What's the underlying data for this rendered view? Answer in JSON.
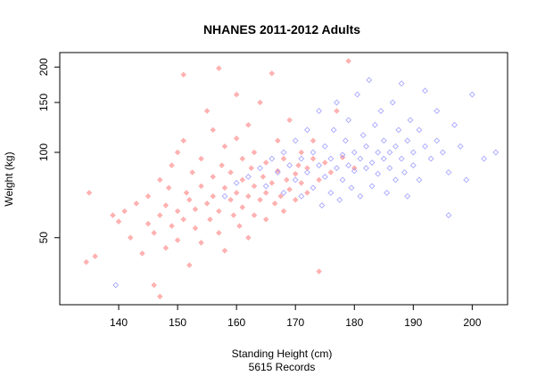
{
  "chart_data": {
    "type": "scatter",
    "title": "NHANES 2011-2012 Adults",
    "xlabel": "Standing Height (cm)",
    "subtitle": "5615 Records",
    "ylabel": "Weight (kg)",
    "y_scale": "log",
    "xlim": [
      130,
      206
    ],
    "ylim": [
      29,
      225
    ],
    "x_ticks": [
      140,
      150,
      160,
      170,
      180,
      190,
      200
    ],
    "y_ticks": [
      50,
      100,
      150,
      200
    ],
    "grid": false,
    "legend": "none",
    "series": [
      {
        "color": "#ff9999",
        "marker": "filled-diamond",
        "points": [
          [
            134.5,
            41
          ],
          [
            135,
            72
          ],
          [
            136,
            43
          ],
          [
            139,
            60
          ],
          [
            140,
            57
          ],
          [
            141,
            62
          ],
          [
            142,
            50
          ],
          [
            143,
            66
          ],
          [
            144,
            44
          ],
          [
            145,
            56
          ],
          [
            145,
            70
          ],
          [
            146,
            34
          ],
          [
            146,
            52
          ],
          [
            147,
            31
          ],
          [
            147,
            60
          ],
          [
            147,
            80
          ],
          [
            148,
            46
          ],
          [
            148,
            65
          ],
          [
            148.5,
            75
          ],
          [
            149,
            55
          ],
          [
            149,
            90
          ],
          [
            150,
            100
          ],
          [
            150,
            49
          ],
          [
            150,
            62
          ],
          [
            151,
            188
          ],
          [
            151,
            110
          ],
          [
            151,
            58
          ],
          [
            151.5,
            72
          ],
          [
            152,
            40
          ],
          [
            152,
            68
          ],
          [
            152.5,
            85
          ],
          [
            153,
            54
          ],
          [
            153,
            63
          ],
          [
            154,
            95
          ],
          [
            154,
            76
          ],
          [
            154,
            48
          ],
          [
            155,
            140
          ],
          [
            155,
            66
          ],
          [
            155.5,
            58
          ],
          [
            156,
            120
          ],
          [
            156,
            82
          ],
          [
            156,
            70
          ],
          [
            157,
            198
          ],
          [
            157,
            52
          ],
          [
            157,
            62
          ],
          [
            157.5,
            90
          ],
          [
            158,
            75
          ],
          [
            158,
            105
          ],
          [
            158,
            45
          ],
          [
            159,
            68
          ],
          [
            159,
            85
          ],
          [
            159.5,
            60
          ],
          [
            160,
            160
          ],
          [
            160,
            112
          ],
          [
            160,
            72
          ],
          [
            160.5,
            55
          ],
          [
            161,
            80
          ],
          [
            161,
            95
          ],
          [
            161,
            64
          ],
          [
            162,
            70
          ],
          [
            162,
            125
          ],
          [
            162,
            50
          ],
          [
            162.5,
            88
          ],
          [
            163,
            76
          ],
          [
            163,
            60
          ],
          [
            163,
            100
          ],
          [
            164,
            68
          ],
          [
            164,
            150
          ],
          [
            164.5,
            82
          ],
          [
            165,
            72
          ],
          [
            165,
            92
          ],
          [
            165,
            58
          ],
          [
            166,
            190
          ],
          [
            166,
            78
          ],
          [
            166.5,
            66
          ],
          [
            167,
            86
          ],
          [
            167,
            110
          ],
          [
            167.5,
            70
          ],
          [
            168,
            62
          ],
          [
            168,
            95
          ],
          [
            168.5,
            80
          ],
          [
            169,
            74
          ],
          [
            169,
            130
          ],
          [
            170,
            84
          ],
          [
            170,
            68
          ],
          [
            170.5,
            90
          ],
          [
            171,
            78
          ],
          [
            171,
            100
          ],
          [
            172,
            72
          ],
          [
            172,
            88
          ],
          [
            173,
            95
          ],
          [
            173,
            110
          ],
          [
            174,
            80
          ],
          [
            174,
            38
          ],
          [
            175,
            92
          ],
          [
            176,
            85
          ],
          [
            177,
            140
          ],
          [
            178,
            96
          ],
          [
            179,
            210
          ],
          [
            180,
            88
          ]
        ]
      },
      {
        "color": "#9999ff",
        "marker": "hollow-diamond",
        "points": [
          [
            139.5,
            34
          ],
          [
            158,
            70
          ],
          [
            160,
            78
          ],
          [
            162,
            82
          ],
          [
            164,
            88
          ],
          [
            165,
            76
          ],
          [
            166,
            95
          ],
          [
            167,
            85
          ],
          [
            168,
            100
          ],
          [
            168,
            72
          ],
          [
            169,
            90
          ],
          [
            170,
            110
          ],
          [
            170,
            80
          ],
          [
            171,
            95
          ],
          [
            171,
            70
          ],
          [
            172,
            120
          ],
          [
            172,
            85
          ],
          [
            173,
            100
          ],
          [
            173,
            75
          ],
          [
            174,
            140
          ],
          [
            174,
            90
          ],
          [
            174.5,
            65
          ],
          [
            175,
            105
          ],
          [
            175,
            82
          ],
          [
            176,
            95
          ],
          [
            176,
            72
          ],
          [
            176.5,
            120
          ],
          [
            177,
            88
          ],
          [
            177,
            150
          ],
          [
            177.5,
            68
          ],
          [
            178,
            98
          ],
          [
            178,
            80
          ],
          [
            178.5,
            110
          ],
          [
            179,
            90
          ],
          [
            179,
            130
          ],
          [
            179.5,
            75
          ],
          [
            180,
            100
          ],
          [
            180,
            86
          ],
          [
            180.5,
            160
          ],
          [
            181,
            95
          ],
          [
            181,
            70
          ],
          [
            181.5,
            115
          ],
          [
            182,
            88
          ],
          [
            182,
            105
          ],
          [
            182.5,
            180
          ],
          [
            183,
            92
          ],
          [
            183,
            76
          ],
          [
            183.5,
            125
          ],
          [
            184,
            100
          ],
          [
            184,
            84
          ],
          [
            184.5,
            140
          ],
          [
            185,
            95
          ],
          [
            185,
            110
          ],
          [
            185.5,
            72
          ],
          [
            186,
            100
          ],
          [
            186,
            88
          ],
          [
            186.5,
            150
          ],
          [
            187,
            105
          ],
          [
            187,
            80
          ],
          [
            187.5,
            120
          ],
          [
            188,
            95
          ],
          [
            188,
            175
          ],
          [
            188.5,
            85
          ],
          [
            189,
            110
          ],
          [
            189,
            70
          ],
          [
            189.5,
            130
          ],
          [
            190,
            100
          ],
          [
            190,
            90
          ],
          [
            191,
            120
          ],
          [
            191,
            80
          ],
          [
            192,
            105
          ],
          [
            192,
            165
          ],
          [
            193,
            95
          ],
          [
            194,
            110
          ],
          [
            194,
            140
          ],
          [
            195,
            100
          ],
          [
            196,
            85
          ],
          [
            196,
            60
          ],
          [
            197,
            125
          ],
          [
            198,
            105
          ],
          [
            199,
            80
          ],
          [
            200,
            160
          ],
          [
            202,
            95
          ],
          [
            204,
            100
          ]
        ]
      }
    ]
  }
}
